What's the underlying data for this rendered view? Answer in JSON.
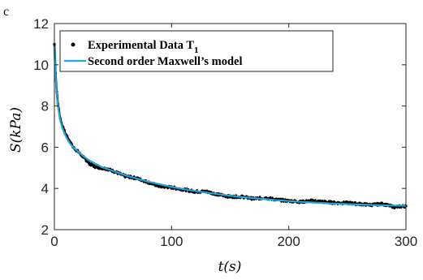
{
  "chart_data": {
    "type": "line",
    "panel_label": "c",
    "xlabel": "t(s)",
    "ylabel": "S(kPa)",
    "xlim": [
      0,
      300
    ],
    "ylim": [
      2,
      12
    ],
    "xticks": [
      "0",
      "100",
      "200",
      "300"
    ],
    "yticks": [
      "2",
      "4",
      "6",
      "8",
      "10",
      "12"
    ],
    "grid": false,
    "legend_position": "top-left",
    "series": [
      {
        "name": "Experimental Data T",
        "name_subscript": "1",
        "style": "dots",
        "color": "#000000",
        "x": [
          0,
          1,
          2,
          3,
          5,
          7,
          10,
          13,
          16,
          20,
          25,
          30,
          35,
          40,
          45,
          50,
          60,
          70,
          80,
          90,
          100,
          110,
          120,
          130,
          140,
          150,
          160,
          170,
          180,
          190,
          200,
          210,
          220,
          230,
          240,
          250,
          260,
          270,
          280,
          290,
          300
        ],
        "y": [
          11.0,
          9.6,
          8.7,
          8.1,
          7.4,
          7.0,
          6.6,
          6.3,
          6.0,
          5.8,
          5.5,
          5.2,
          5.05,
          5.0,
          4.95,
          4.85,
          4.6,
          4.5,
          4.3,
          4.1,
          4.05,
          3.95,
          3.85,
          3.85,
          3.7,
          3.6,
          3.6,
          3.5,
          3.55,
          3.45,
          3.4,
          3.35,
          3.4,
          3.35,
          3.3,
          3.3,
          3.25,
          3.2,
          3.25,
          3.1,
          3.15
        ]
      },
      {
        "name": "Second order Maxwell’s model",
        "style": "line",
        "color": "#1fa7d9",
        "x": [
          0,
          1,
          2,
          3,
          5,
          7,
          10,
          13,
          16,
          20,
          25,
          30,
          35,
          40,
          45,
          50,
          60,
          70,
          80,
          90,
          100,
          110,
          120,
          130,
          140,
          150,
          160,
          170,
          180,
          190,
          200,
          210,
          220,
          230,
          240,
          250,
          260,
          270,
          280,
          290,
          300
        ],
        "y": [
          10.9,
          9.5,
          8.6,
          8.0,
          7.3,
          6.9,
          6.5,
          6.2,
          6.0,
          5.8,
          5.55,
          5.35,
          5.2,
          5.05,
          4.95,
          4.85,
          4.65,
          4.48,
          4.33,
          4.2,
          4.08,
          3.97,
          3.88,
          3.8,
          3.72,
          3.65,
          3.58,
          3.53,
          3.48,
          3.43,
          3.39,
          3.35,
          3.32,
          3.29,
          3.26,
          3.24,
          3.22,
          3.2,
          3.18,
          3.17,
          3.16
        ]
      }
    ]
  }
}
